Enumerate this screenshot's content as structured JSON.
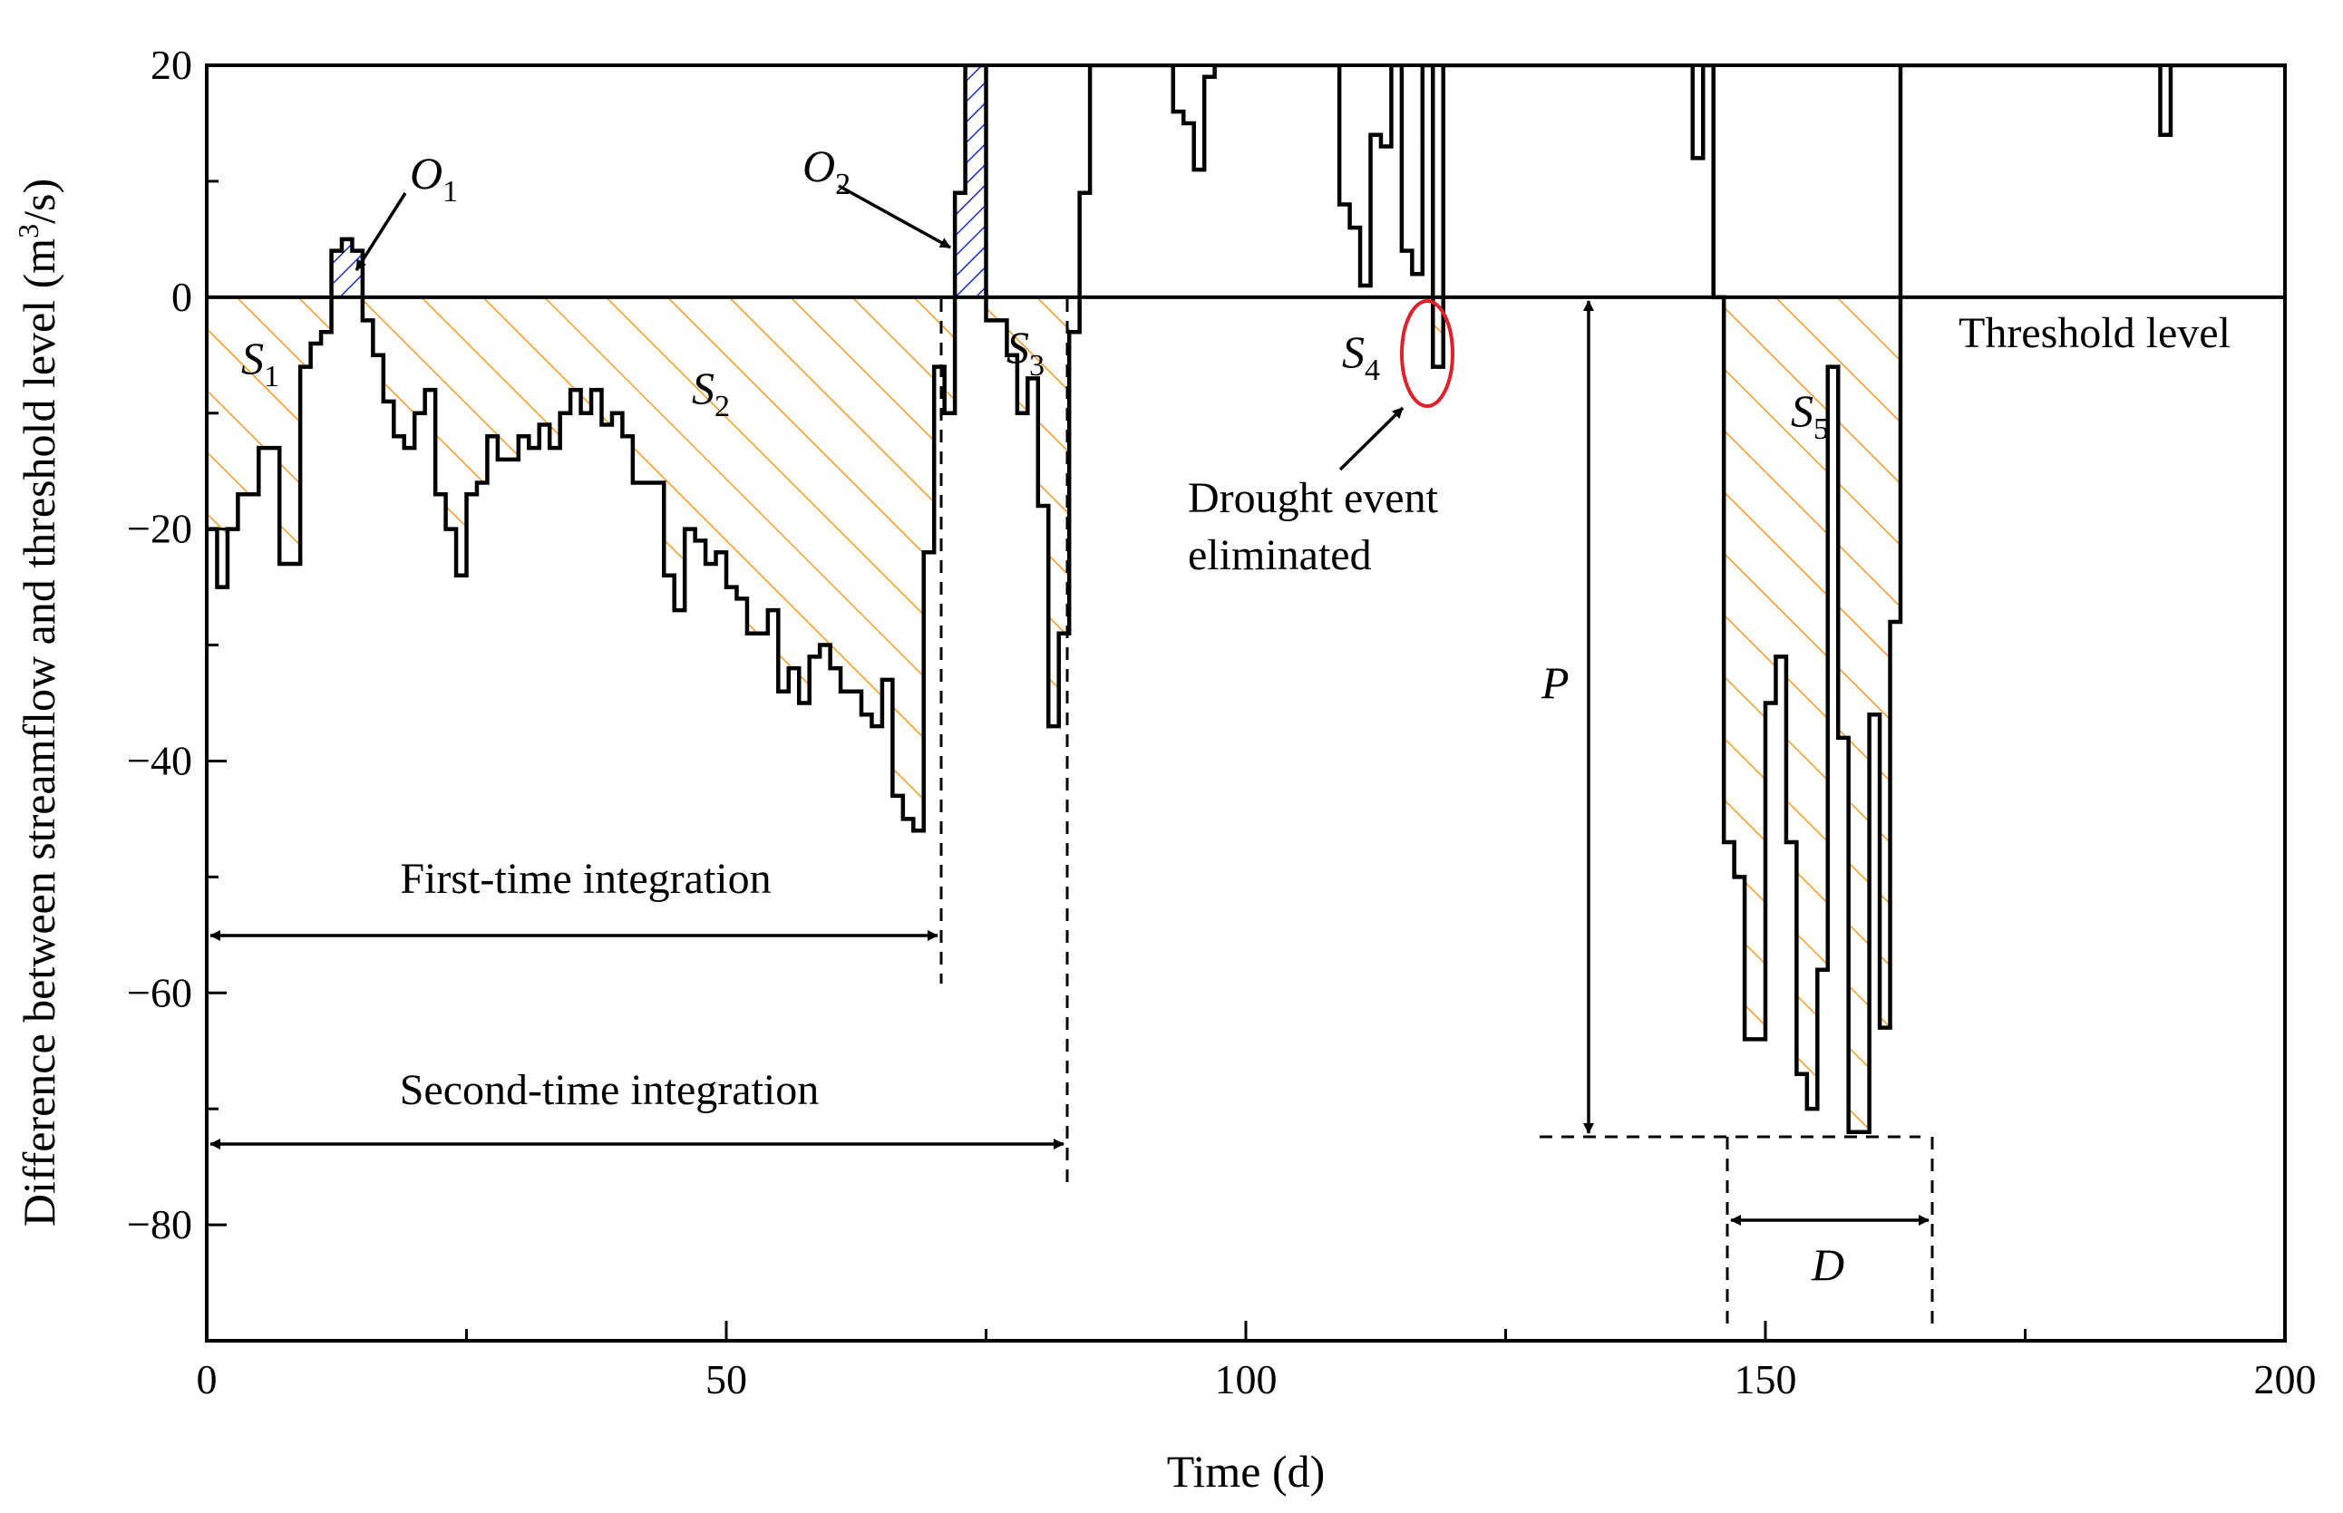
{
  "chart_data": {
    "type": "line",
    "subtype": "step",
    "xlabel": "Time (d)",
    "ylabel_main": "Difference between streamflow and threshold level (m",
    "ylabel_sup": "3",
    "ylabel_end": "/s)",
    "xlim": [
      0,
      200
    ],
    "ylim": [
      -90,
      20
    ],
    "xticks": [
      0,
      50,
      100,
      150,
      200
    ],
    "xtick_labels": [
      "0",
      "50",
      "100",
      "150",
      "200"
    ],
    "yticks": [
      20,
      0,
      -20,
      -40,
      -60,
      -80
    ],
    "ytick_labels": [
      "20",
      "0",
      "−20",
      "−40",
      "−60",
      "−80"
    ],
    "threshold_label": "Threshold level",
    "series": [
      {
        "name": "streamflow minus threshold",
        "values": [
          [
            0,
            -20
          ],
          [
            1,
            -25
          ],
          [
            2,
            -20
          ],
          [
            3,
            -17
          ],
          [
            5,
            -13
          ],
          [
            7,
            -23
          ],
          [
            9,
            -6
          ],
          [
            10,
            -4
          ],
          [
            11,
            -3
          ],
          [
            12,
            4
          ],
          [
            13,
            5
          ],
          [
            14,
            4
          ],
          [
            15,
            -2
          ],
          [
            16,
            -5
          ],
          [
            17,
            -9
          ],
          [
            18,
            -12
          ],
          [
            19,
            -13
          ],
          [
            20,
            -10
          ],
          [
            21,
            -8
          ],
          [
            22,
            -17
          ],
          [
            23,
            -20
          ],
          [
            24,
            -24
          ],
          [
            25,
            -17
          ],
          [
            26,
            -16
          ],
          [
            27,
            -12
          ],
          [
            28,
            -14
          ],
          [
            30,
            -12
          ],
          [
            31,
            -13
          ],
          [
            32,
            -11
          ],
          [
            33,
            -13
          ],
          [
            34,
            -10
          ],
          [
            35,
            -8
          ],
          [
            36,
            -10
          ],
          [
            37,
            -8
          ],
          [
            38,
            -11
          ],
          [
            39,
            -10
          ],
          [
            40,
            -12
          ],
          [
            41,
            -16
          ],
          [
            44,
            -24
          ],
          [
            45,
            -27
          ],
          [
            46,
            -20
          ],
          [
            47,
            -21
          ],
          [
            48,
            -23
          ],
          [
            49,
            -22
          ],
          [
            50,
            -25
          ],
          [
            51,
            -26
          ],
          [
            52,
            -29
          ],
          [
            54,
            -27
          ],
          [
            55,
            -34
          ],
          [
            56,
            -32
          ],
          [
            57,
            -35
          ],
          [
            58,
            -31
          ],
          [
            59,
            -30
          ],
          [
            60,
            -32
          ],
          [
            61,
            -34
          ],
          [
            63,
            -36
          ],
          [
            64,
            -37
          ],
          [
            65,
            -33
          ],
          [
            66,
            -43
          ],
          [
            67,
            -45
          ],
          [
            68,
            -46
          ],
          [
            69,
            -22
          ],
          [
            70,
            -6
          ],
          [
            71,
            -10
          ],
          [
            72,
            9
          ],
          [
            73,
            20
          ],
          [
            75,
            -2
          ],
          [
            77,
            -5
          ],
          [
            78,
            -10
          ],
          [
            79,
            -7
          ],
          [
            80,
            -18
          ],
          [
            81,
            -37
          ],
          [
            82,
            -29
          ],
          [
            83,
            -3
          ],
          [
            84,
            9
          ],
          [
            85,
            20
          ],
          [
            92,
            20
          ],
          [
            93,
            16
          ],
          [
            94,
            15
          ],
          [
            95,
            11
          ],
          [
            96,
            19
          ],
          [
            97,
            20
          ],
          [
            108,
            20
          ],
          [
            109,
            8
          ],
          [
            110,
            6
          ],
          [
            111,
            1
          ],
          [
            112,
            14
          ],
          [
            113,
            13
          ],
          [
            114,
            20
          ],
          [
            115,
            4
          ],
          [
            116,
            2
          ],
          [
            117,
            20
          ],
          [
            118,
            -6
          ],
          [
            119,
            20
          ],
          [
            142,
            20
          ],
          [
            143,
            12
          ],
          [
            144,
            20
          ],
          [
            145,
            0
          ],
          [
            146,
            -47
          ],
          [
            147,
            -50
          ],
          [
            148,
            -64
          ],
          [
            150,
            -35
          ],
          [
            151,
            -31
          ],
          [
            152,
            -47
          ],
          [
            153,
            -67
          ],
          [
            154,
            -70
          ],
          [
            155,
            -58
          ],
          [
            156,
            -6
          ],
          [
            157,
            -38
          ],
          [
            158,
            -72
          ],
          [
            160,
            -36
          ],
          [
            161,
            -63
          ],
          [
            162,
            -28
          ],
          [
            163,
            20
          ],
          [
            187,
            20
          ],
          [
            188,
            14
          ],
          [
            189,
            20
          ],
          [
            200,
            20
          ]
        ]
      }
    ],
    "drought_areas": [
      "S1",
      "S2",
      "S3",
      "S4",
      "S5"
    ],
    "excess_areas": [
      "O1",
      "O2"
    ],
    "intervals": [
      {
        "label": "First-time integration",
        "x_start": 0,
        "x_end": 71
      },
      {
        "label": "Second-time integration",
        "x_start": 0,
        "x_end": 83
      }
    ],
    "annotations": {
      "drought_eliminated": [
        "Drought event",
        "eliminated"
      ],
      "peak_label": "P",
      "duration_label": "D",
      "peak_value": -72,
      "duration_start": 146,
      "duration_end": 166
    },
    "colors": {
      "line": "#000000",
      "deficit_hatch": "#f39a27",
      "excess_hatch": "#1a2bd1",
      "eliminated_circle": "#e0202a"
    }
  },
  "symbols": {
    "S1": {
      "main": "S",
      "sub": "1"
    },
    "S2": {
      "main": "S",
      "sub": "2"
    },
    "S3": {
      "main": "S",
      "sub": "3"
    },
    "S4": {
      "main": "S",
      "sub": "4"
    },
    "S5": {
      "main": "S",
      "sub": "5"
    },
    "O1": {
      "main": "O",
      "sub": "1"
    },
    "O2": {
      "main": "O",
      "sub": "2"
    }
  }
}
